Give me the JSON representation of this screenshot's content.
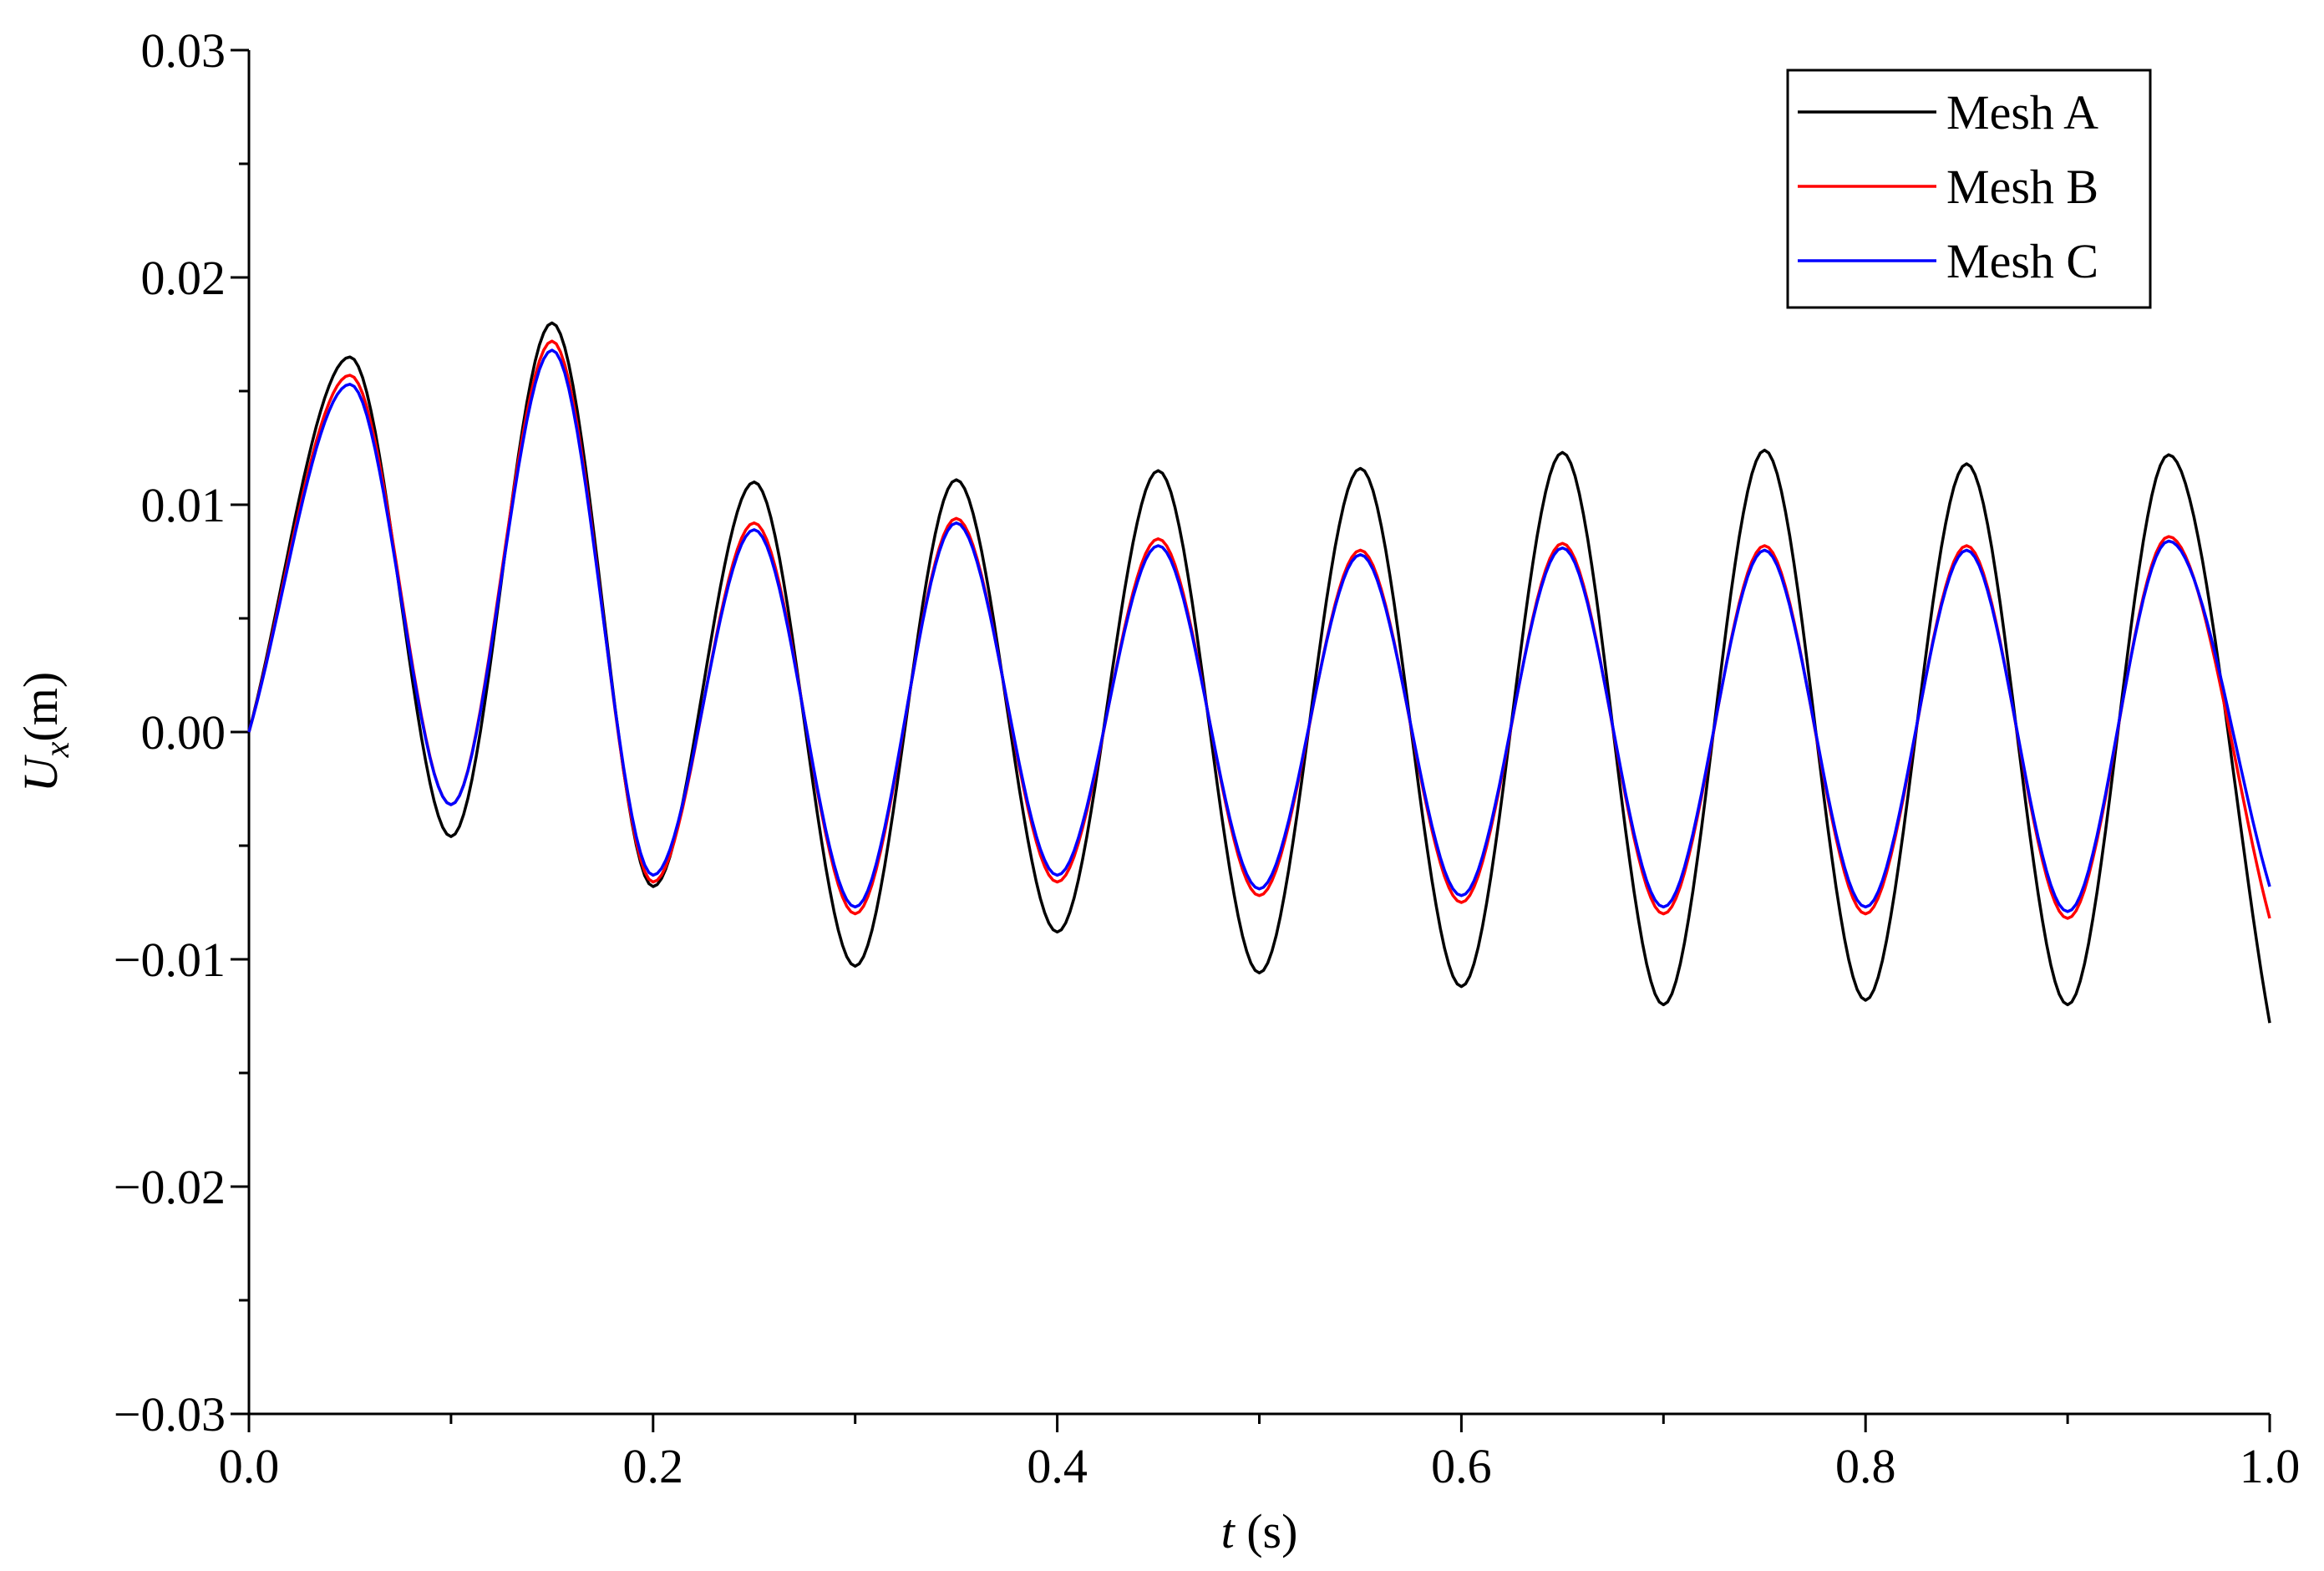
{
  "chart_data": {
    "type": "line",
    "title": "",
    "xlabel": {
      "var": "t",
      "unit": " (s)"
    },
    "ylabel": {
      "var": "U",
      "sub": "x",
      "unit": "(m)"
    },
    "xlim": [
      0,
      1.0
    ],
    "ylim": [
      -0.03,
      0.03
    ],
    "xticks": [
      0.0,
      0.2,
      0.4,
      0.6,
      0.8,
      1.0
    ],
    "xtick_labels": [
      "0.0",
      "0.2",
      "0.4",
      "0.6",
      "0.8",
      "1.0"
    ],
    "yticks": [
      -0.03,
      -0.02,
      -0.01,
      0.0,
      0.01,
      0.02,
      0.03
    ],
    "ytick_labels": [
      "−0.03",
      "−0.02",
      "−0.01",
      "0.00",
      "0.01",
      "0.02",
      "0.03"
    ],
    "grid": false,
    "legend_position": "top-right",
    "series": [
      {
        "name": "Mesh A",
        "color": "#000000",
        "x": [
          0.0,
          0.05,
          0.1,
          0.15,
          0.2,
          0.25,
          0.3,
          0.35,
          0.4,
          0.45,
          0.5,
          0.55,
          0.6,
          0.65,
          0.7,
          0.75,
          0.8,
          0.85,
          0.9,
          0.95,
          1.0
        ],
        "y": [
          0.0,
          0.0165,
          -0.0046,
          0.018,
          -0.0068,
          0.011,
          -0.0103,
          0.0111,
          -0.0088,
          0.0115,
          -0.0106,
          0.0116,
          -0.0112,
          0.0123,
          -0.012,
          0.0124,
          -0.0118,
          0.0118,
          -0.012,
          0.0122,
          -0.0128
        ]
      },
      {
        "name": "Mesh B",
        "color": "#ff0000",
        "x": [
          0.0,
          0.05,
          0.1,
          0.15,
          0.2,
          0.25,
          0.3,
          0.35,
          0.4,
          0.45,
          0.5,
          0.55,
          0.6,
          0.65,
          0.7,
          0.75,
          0.8,
          0.85,
          0.9,
          0.95,
          1.0
        ],
        "y": [
          0.0,
          0.0157,
          -0.0032,
          0.0172,
          -0.0066,
          0.0092,
          -0.008,
          0.0094,
          -0.0066,
          0.0085,
          -0.0072,
          0.008,
          -0.0075,
          0.0083,
          -0.008,
          0.0082,
          -0.008,
          0.0082,
          -0.0082,
          0.0086,
          -0.0082
        ]
      },
      {
        "name": "Mesh C",
        "color": "#0000ff",
        "x": [
          0.0,
          0.05,
          0.1,
          0.15,
          0.2,
          0.25,
          0.3,
          0.35,
          0.4,
          0.45,
          0.5,
          0.55,
          0.6,
          0.65,
          0.7,
          0.75,
          0.8,
          0.85,
          0.9,
          0.95,
          1.0
        ],
        "y": [
          0.0,
          0.0153,
          -0.0032,
          0.0168,
          -0.0063,
          0.0089,
          -0.0077,
          0.0092,
          -0.0063,
          0.0082,
          -0.0069,
          0.0078,
          -0.0072,
          0.0081,
          -0.0077,
          0.008,
          -0.0077,
          0.008,
          -0.0079,
          0.0084,
          -0.0068
        ]
      }
    ]
  }
}
